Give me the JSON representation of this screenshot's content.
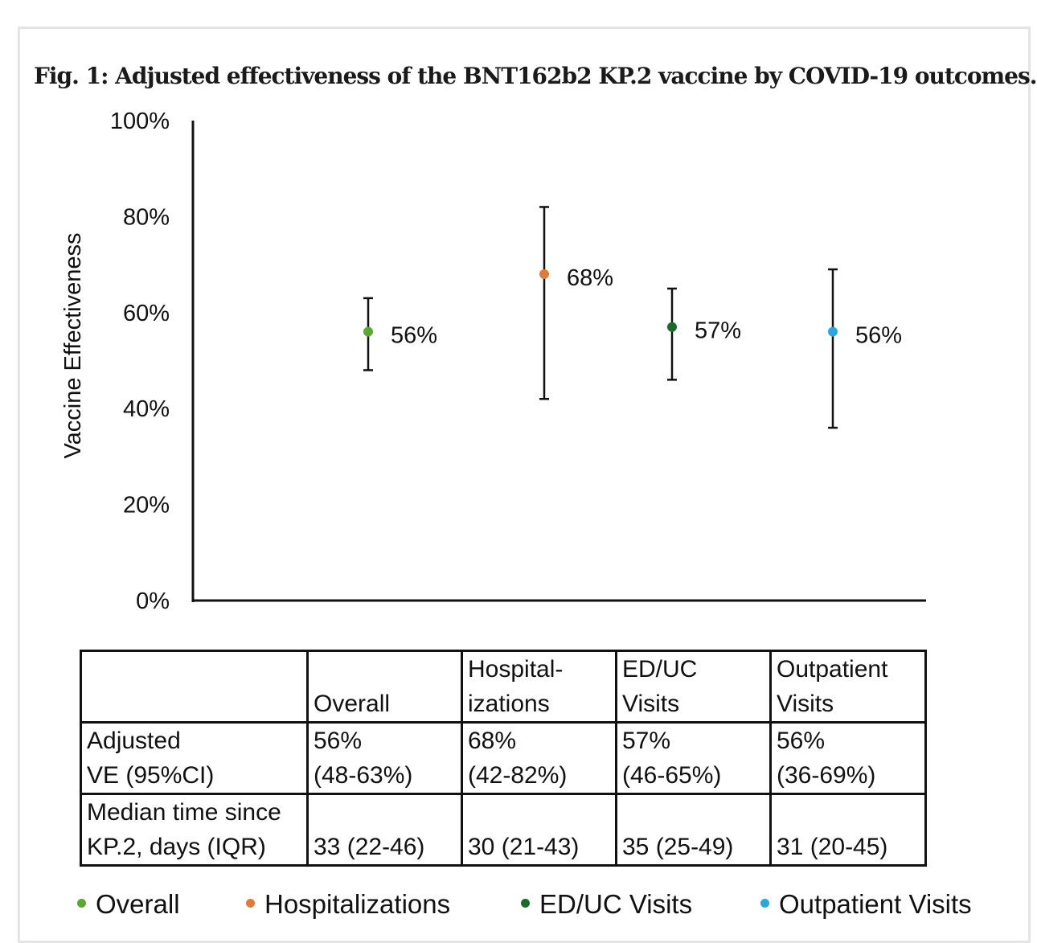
{
  "figure_title": "Fig. 1: Adjusted effectiveness of the BNT162b2 KP.2 vaccine by COVID-19 outcomes.",
  "colors": {
    "overall": "#5aa832",
    "hospitalizations": "#e07b3a",
    "ed_uc": "#1a6b2a",
    "outpatient": "#2aa7dc",
    "axis": "#111111"
  },
  "chart_data": {
    "type": "scatter",
    "title": "",
    "xlabel": "",
    "ylabel": "Vaccine Effectiveness",
    "ylim": [
      0,
      100
    ],
    "y_ticks": [
      "0%",
      "20%",
      "40%",
      "60%",
      "80%",
      "100%"
    ],
    "y_tick_values": [
      0,
      20,
      40,
      60,
      80,
      100
    ],
    "categories": [
      "Overall",
      "Hospitalizations",
      "ED/UC Visits",
      "Outpatient Visits"
    ],
    "series": [
      {
        "name": "Overall",
        "value": 56,
        "ci_low": 48,
        "ci_high": 63,
        "label": "56%",
        "color": "#5aa832"
      },
      {
        "name": "Hospitalizations",
        "value": 68,
        "ci_low": 42,
        "ci_high": 82,
        "label": "68%",
        "color": "#e07b3a"
      },
      {
        "name": "ED/UC Visits",
        "value": 57,
        "ci_low": 46,
        "ci_high": 65,
        "label": "57%",
        "color": "#1a6b2a"
      },
      {
        "name": "Outpatient Visits",
        "value": 56,
        "ci_low": 36,
        "ci_high": 69,
        "label": "56%",
        "color": "#2aa7dc"
      }
    ],
    "grid": false,
    "legend_position": "bottom"
  },
  "table": {
    "header": [
      "",
      "Overall",
      "Hospital-\nizations",
      "ED/UC\nVisits",
      "Outpatient\nVisits"
    ],
    "rows": [
      [
        "Adjusted\nVE (95%CI)",
        "56%\n(48-63%)",
        "68%\n(42-82%)",
        "57%\n(46-65%)",
        "56%\n(36-69%)"
      ],
      [
        "Median time since\nKP.2, days (IQR)",
        "33 (22-46)",
        "30 (21-43)",
        "35 (25-49)",
        "31 (20-45)"
      ]
    ]
  },
  "legend": [
    {
      "label": "Overall",
      "color": "#5aa832"
    },
    {
      "label": "Hospitalizations",
      "color": "#e07b3a"
    },
    {
      "label": "ED/UC Visits",
      "color": "#1a6b2a"
    },
    {
      "label": "Outpatient Visits",
      "color": "#2aa7dc"
    }
  ]
}
